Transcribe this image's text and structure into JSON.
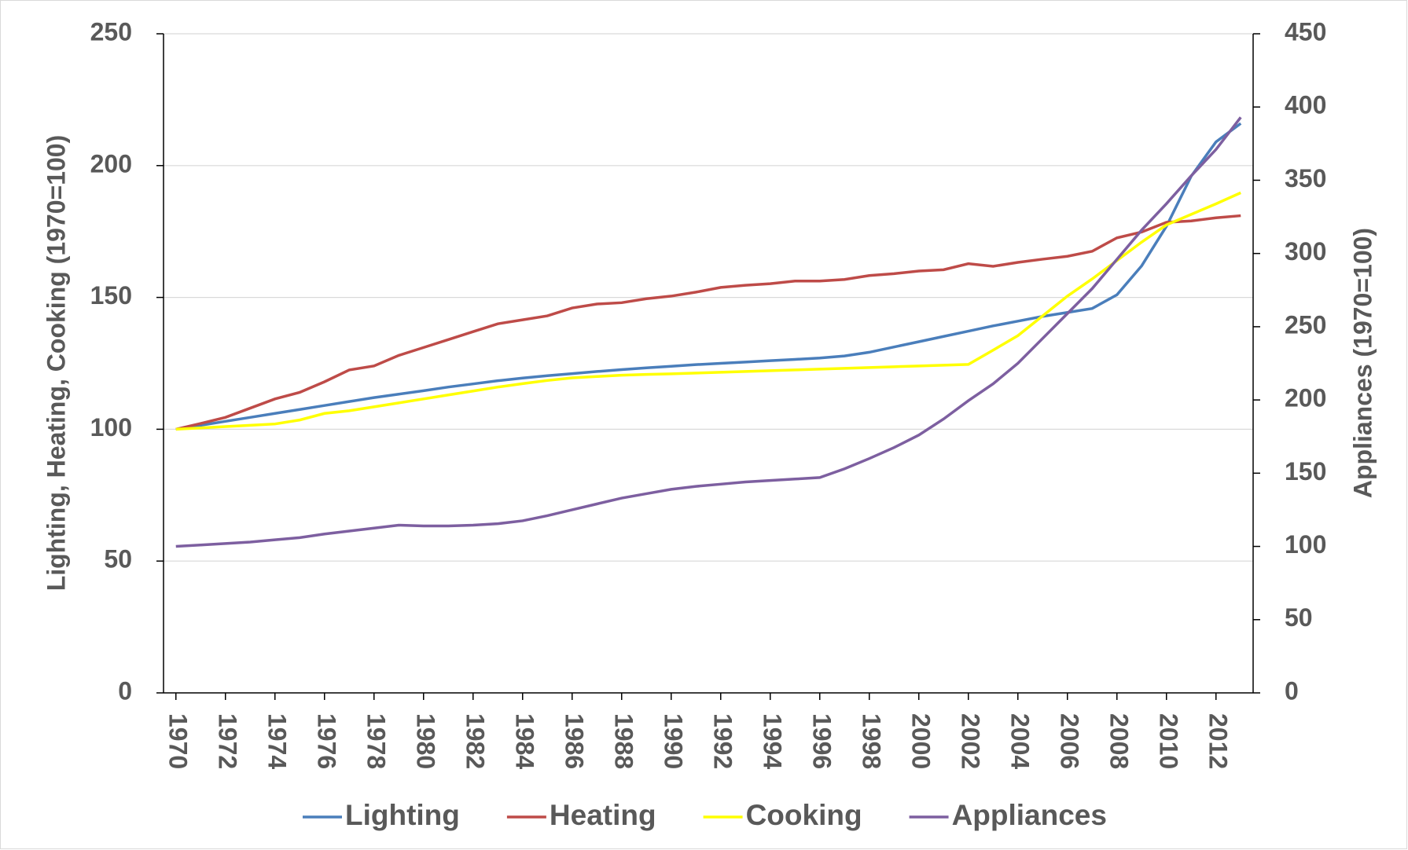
{
  "chart_data": {
    "type": "line",
    "y_label": "Lighting, Heating, Cooking (1970=100)",
    "y2_label": "Appliances (1970=100)",
    "x": [
      1970,
      1971,
      1972,
      1973,
      1974,
      1975,
      1976,
      1977,
      1978,
      1979,
      1980,
      1981,
      1982,
      1983,
      1984,
      1985,
      1986,
      1987,
      1988,
      1989,
      1990,
      1991,
      1992,
      1993,
      1994,
      1995,
      1996,
      1997,
      1998,
      1999,
      2000,
      2001,
      2002,
      2003,
      2004,
      2005,
      2006,
      2007,
      2008,
      2009,
      2010,
      2011,
      2012,
      2013
    ],
    "xlim": [
      1969.5,
      2013.5
    ],
    "xticks": [
      1970,
      1972,
      1974,
      1976,
      1978,
      1980,
      1982,
      1984,
      1986,
      1988,
      1990,
      1992,
      1994,
      1996,
      1998,
      2000,
      2002,
      2004,
      2006,
      2008,
      2010,
      2012
    ],
    "ylim": [
      0,
      250
    ],
    "yticks": [
      0,
      50,
      100,
      150,
      200,
      250
    ],
    "y2lim": [
      0,
      450
    ],
    "y2ticks": [
      0,
      50,
      100,
      150,
      200,
      250,
      300,
      350,
      400,
      450
    ],
    "grid": true,
    "legend": "bottom",
    "series": [
      {
        "name": "Lighting",
        "color": "#4a7ebb",
        "values": [
          100,
          101.5,
          103,
          104.5,
          106,
          107.5,
          109,
          110.5,
          112,
          113.3,
          114.6,
          116,
          117.2,
          118.4,
          119.4,
          120.3,
          121.1,
          121.9,
          122.6,
          123.3,
          123.9,
          124.5,
          125,
          125.5,
          126,
          126.5,
          127,
          127.8,
          129.2,
          131.2,
          133.2,
          135.2,
          137.2,
          139.2,
          141,
          142.8,
          144.3,
          145.8,
          151,
          162,
          177,
          196,
          209,
          216
        ]
      },
      {
        "name": "Heating",
        "color": "#be4b48",
        "values": [
          100,
          102.2,
          104.5,
          108,
          111.5,
          114,
          118,
          122.5,
          124,
          128,
          131,
          134,
          137,
          140,
          141.5,
          143,
          146,
          147.5,
          148,
          149.5,
          150.5,
          152,
          153.8,
          154.6,
          155.2,
          156.2,
          156.2,
          156.8,
          158.3,
          159,
          160,
          160.5,
          162.8,
          161.8,
          163.3,
          164.5,
          165.6,
          167.5,
          172.6,
          174.8,
          178.5,
          179,
          180.2,
          181
        ]
      },
      {
        "name": "Cooking",
        "color": "#ffff00",
        "values": [
          100,
          100.5,
          101,
          101.5,
          102,
          103.5,
          106,
          107,
          108.5,
          110,
          111.5,
          113,
          114.5,
          116,
          117.3,
          118.5,
          119.5,
          120,
          120.5,
          120.8,
          121,
          121.3,
          121.6,
          121.9,
          122.2,
          122.5,
          122.8,
          123.1,
          123.4,
          123.7,
          124,
          124.3,
          124.6,
          130,
          135.5,
          143,
          150.5,
          157,
          164,
          171,
          177.5,
          181.5,
          185.5,
          189.7
        ]
      },
      {
        "name": "Appliances",
        "color": "#7d5fa0",
        "axis": "y2",
        "values": [
          100,
          101,
          102,
          103,
          104.5,
          106,
          108.5,
          110.5,
          112.5,
          114.5,
          114,
          114,
          114.5,
          115.5,
          117.5,
          121,
          125,
          129,
          133,
          136,
          139,
          141,
          142.5,
          144,
          145,
          146,
          147,
          153,
          160,
          167.5,
          176,
          187,
          199.5,
          211,
          225,
          242,
          259,
          276,
          296,
          316,
          334,
          353,
          371,
          393
        ]
      }
    ]
  }
}
